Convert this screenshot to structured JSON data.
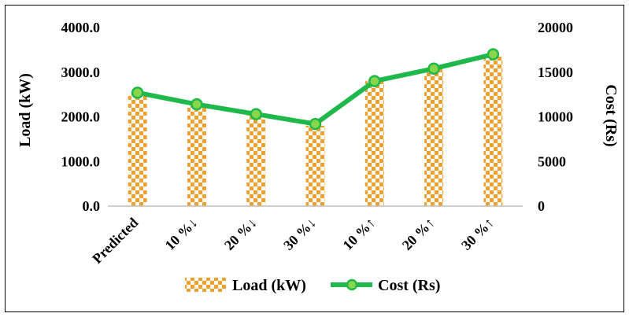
{
  "chart_data": {
    "type": "bar",
    "categories": [
      "Predicted",
      "10 %↓",
      "20 %↓",
      "30 %↓",
      "10 %↑",
      "20 %↑",
      "30 %↑"
    ],
    "series": [
      {
        "name": "Load (kW)",
        "type": "bar",
        "axis": "left",
        "values": [
          2550,
          2300,
          2050,
          1800,
          2800,
          3100,
          3350
        ]
      },
      {
        "name": "Cost (Rs)",
        "type": "line",
        "axis": "right",
        "values": [
          12700,
          11400,
          10300,
          9200,
          14000,
          15400,
          17000
        ]
      }
    ],
    "y_left": {
      "label": "Load (kW)",
      "ylim": [
        0,
        4000
      ],
      "ticks": [
        "0.0",
        "1000.0",
        "2000.0",
        "3000.0",
        "4000.0"
      ]
    },
    "y_right": {
      "label": "Cost (Rs)",
      "ylim": [
        0,
        20000
      ],
      "ticks": [
        "0",
        "5000",
        "10000",
        "15000",
        "20000"
      ]
    },
    "legend": {
      "position": "bottom",
      "entries": [
        "Load (kW)",
        "Cost (Rs)"
      ]
    },
    "grid": false,
    "colors": {
      "bar_pattern": "#f0a030",
      "line": "#1fb84a",
      "marker_fill": "#8ad64a",
      "axis": "#bfbfbf"
    }
  }
}
